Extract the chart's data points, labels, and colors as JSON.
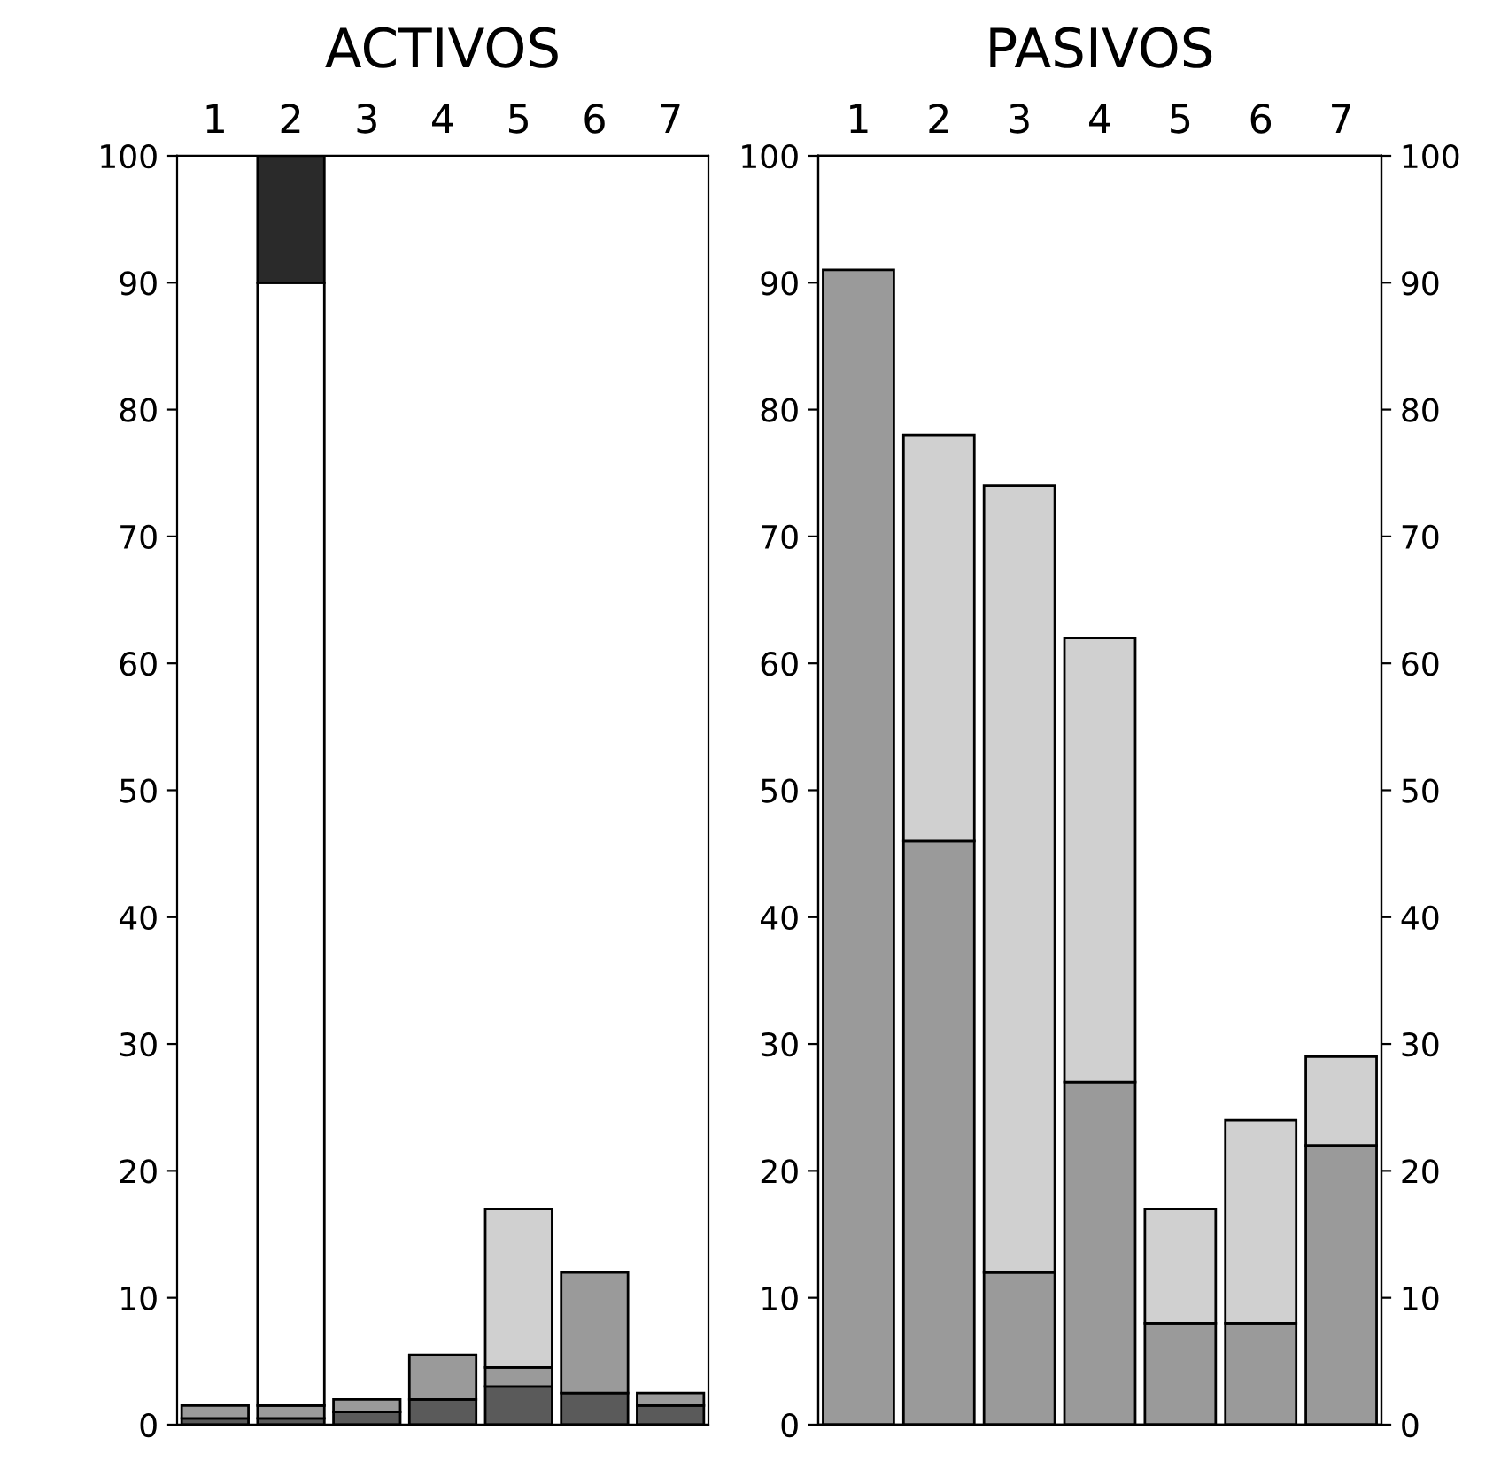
{
  "chart_data": [
    {
      "type": "bar",
      "title": "ACTIVOS",
      "categories": [
        "1",
        "2",
        "3",
        "4",
        "5",
        "6",
        "7"
      ],
      "stacked": true,
      "ylim": [
        0,
        100
      ],
      "yticks": [
        0,
        10,
        20,
        30,
        40,
        50,
        60,
        70,
        80,
        90,
        100
      ],
      "grid": false,
      "legend": false,
      "tick_labels": "xy",
      "series": [
        {
          "color": "#5a5a5a",
          "values": [
            0.5,
            0.5,
            1,
            2,
            3,
            2.5,
            1.5
          ]
        },
        {
          "color": "#9a9a9a",
          "values": [
            1,
            1,
            1,
            3.5,
            1.5,
            9.5,
            1
          ]
        },
        {
          "color": "#d0d0d0",
          "values": [
            null,
            null,
            null,
            null,
            12.5,
            null,
            null
          ]
        },
        {
          "color": "#ffffff",
          "values": [
            null,
            88.5,
            null,
            null,
            null,
            null,
            null
          ]
        },
        {
          "color": "#2a2a2a",
          "values": [
            null,
            10,
            null,
            null,
            null,
            null,
            null
          ]
        }
      ]
    },
    {
      "type": "bar",
      "title": "PASIVOS",
      "categories": [
        "1",
        "2",
        "3",
        "4",
        "5",
        "6",
        "7"
      ],
      "stacked": true,
      "ylim": [
        0,
        100
      ],
      "yticks": [
        0,
        10,
        20,
        30,
        40,
        50,
        60,
        70,
        80,
        90,
        100
      ],
      "y2lim": [
        0,
        100
      ],
      "y2ticks": [
        0,
        10,
        20,
        30,
        40,
        50,
        60,
        70,
        80,
        90,
        100
      ],
      "grid": false,
      "legend": false,
      "tick_labels": "xy",
      "series": [
        {
          "color": "#9a9a9a",
          "values": [
            91,
            46,
            12,
            27,
            8,
            8,
            22
          ]
        },
        {
          "color": "#d0d0d0",
          "values": [
            null,
            32,
            62,
            35,
            9,
            16,
            7
          ]
        }
      ]
    }
  ]
}
